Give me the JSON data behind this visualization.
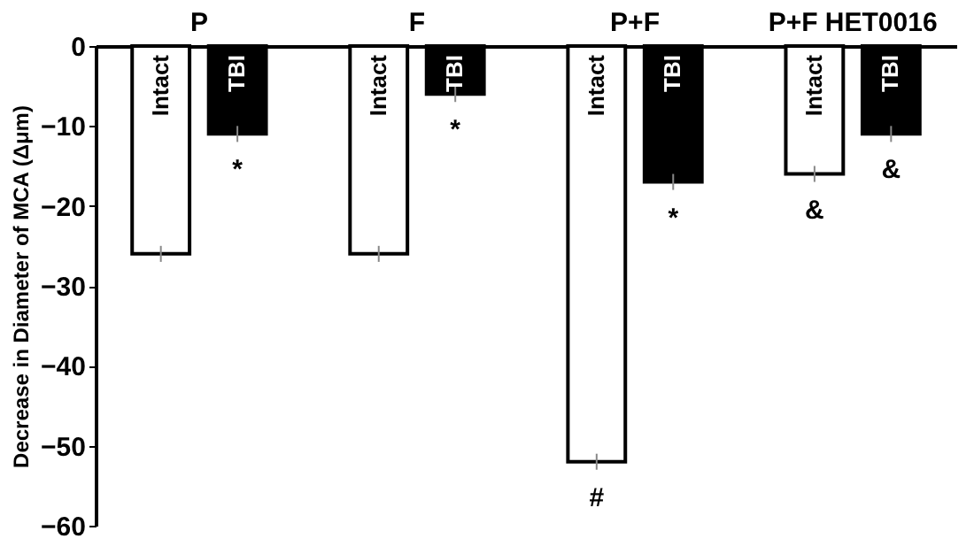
{
  "chart_data": {
    "type": "bar",
    "ylabel": "Decrease in Diameter of MCA  (Δμm)",
    "categories": [
      "P",
      "F",
      "P+F",
      "P+F HET0016"
    ],
    "series": [
      {
        "name": "Intact",
        "color": "#ffffff",
        "values": [
          -26,
          -26,
          -52,
          -16
        ],
        "errors": [
          1,
          1,
          1,
          1
        ],
        "value_labels": [
          null,
          null,
          "#",
          "&"
        ]
      },
      {
        "name": "TBI",
        "color": "#000000",
        "values": [
          -11,
          -6,
          -17,
          -11
        ],
        "errors": [
          1,
          1,
          1,
          1
        ],
        "value_labels": [
          "*",
          "*",
          "*",
          "&"
        ]
      }
    ],
    "ylim": [
      -60,
      0
    ],
    "yticks": [
      -60,
      -50,
      -40,
      -30,
      -20,
      -10,
      0
    ],
    "grid": false,
    "legend": false
  }
}
